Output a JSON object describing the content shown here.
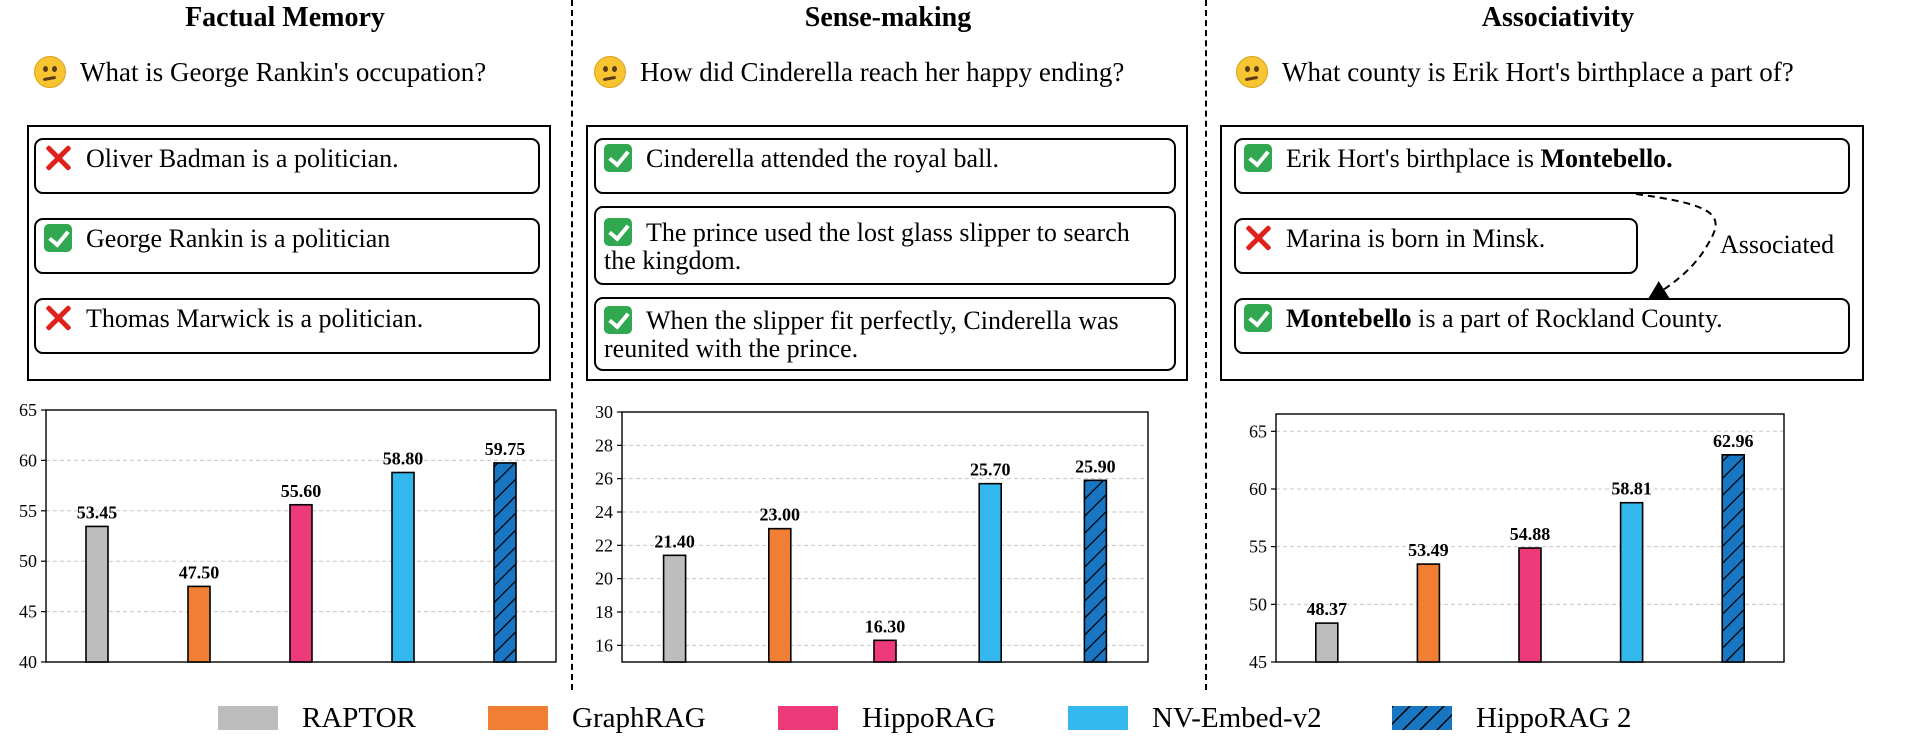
{
  "panels": [
    {
      "title": "Factual Memory",
      "question": "What is George Rankin's occupation?",
      "statements": [
        {
          "icon": "cross-icon",
          "text": "Oliver Badman is a politician."
        },
        {
          "icon": "check-icon",
          "text": "George Rankin is a politician"
        },
        {
          "icon": "cross-icon",
          "text": "Thomas Marwick is a politician."
        }
      ]
    },
    {
      "title": "Sense-making",
      "question": "How did Cinderella reach her happy ending?",
      "statements": [
        {
          "icon": "check-icon",
          "text": "Cinderella attended the royal ball."
        },
        {
          "icon": "check-icon",
          "text": "The prince used the lost glass slipper to search the kingdom."
        },
        {
          "icon": "check-icon",
          "text": "When the slipper fit perfectly, Cinderella was reunited with the prince."
        }
      ]
    },
    {
      "title": "Associativity",
      "question": "What county is Erik Hort's birthplace a part of?",
      "statements": [
        {
          "icon": "check-icon",
          "text_pre": "Erik Hort's birthplace is ",
          "text_bold": "Montebello."
        },
        {
          "icon": "cross-icon",
          "text": "Marina is born in Minsk."
        },
        {
          "icon": "check-icon",
          "text_bold": "Montebello",
          "text_post": " is a part of Rockland County."
        }
      ],
      "arrow_label": "Associated"
    }
  ],
  "colors": {
    "RAPTOR": "#bdbdbd",
    "GraphRAG": "#f07f33",
    "HippoRAG": "#ec3a7b",
    "NV-Embed-v2": "#33b8ee",
    "HippoRAG 2": "#1976c2"
  },
  "legend": [
    "RAPTOR",
    "GraphRAG",
    "HippoRAG",
    "NV-Embed-v2",
    "HippoRAG 2"
  ],
  "chart_data": [
    {
      "type": "bar",
      "categories": [
        "RAPTOR",
        "GraphRAG",
        "HippoRAG",
        "NV-Embed-v2",
        "HippoRAG 2"
      ],
      "values": [
        53.45,
        47.5,
        55.6,
        58.8,
        59.75
      ],
      "value_labels": [
        "53.45",
        "47.50",
        "55.60",
        "58.80",
        "59.75"
      ],
      "ylim": [
        40,
        65
      ],
      "yticks": [
        40,
        45,
        50,
        55,
        60,
        65
      ],
      "grid": true
    },
    {
      "type": "bar",
      "categories": [
        "RAPTOR",
        "GraphRAG",
        "HippoRAG",
        "NV-Embed-v2",
        "HippoRAG 2"
      ],
      "values": [
        21.4,
        23.0,
        16.3,
        25.7,
        25.9
      ],
      "value_labels": [
        "21.40",
        "23.00",
        "16.30",
        "25.70",
        "25.90"
      ],
      "ylim": [
        15,
        30
      ],
      "yticks": [
        16,
        18,
        20,
        22,
        24,
        26,
        28,
        30
      ],
      "grid": true
    },
    {
      "type": "bar",
      "categories": [
        "RAPTOR",
        "GraphRAG",
        "HippoRAG",
        "NV-Embed-v2",
        "HippoRAG 2"
      ],
      "values": [
        48.37,
        53.49,
        54.88,
        58.81,
        62.96
      ],
      "value_labels": [
        "48.37",
        "53.49",
        "54.88",
        "58.81",
        "62.96"
      ],
      "ylim": [
        45,
        66.5
      ],
      "yticks": [
        45,
        50,
        55,
        60,
        65
      ],
      "grid": true
    }
  ]
}
